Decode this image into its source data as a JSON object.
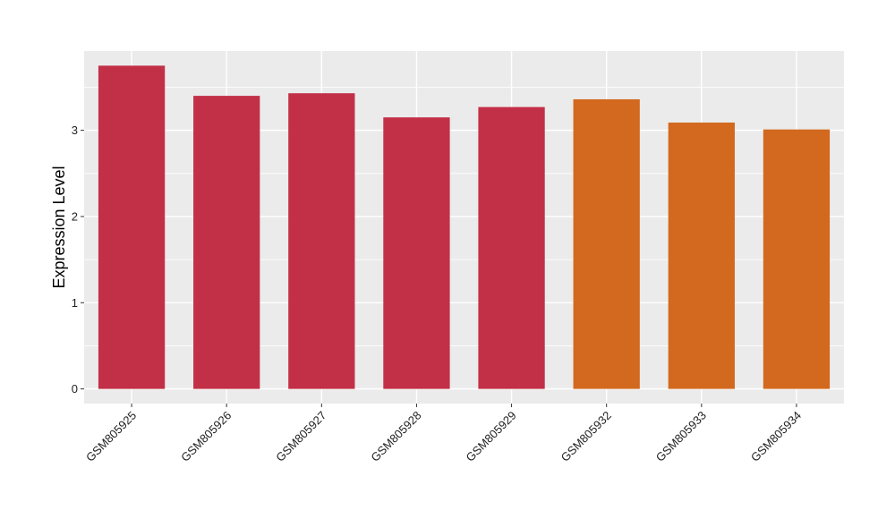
{
  "chart_data": {
    "type": "bar",
    "title": "",
    "xlabel": "",
    "ylabel": "Expression Level",
    "categories": [
      "GSM805925",
      "GSM805926",
      "GSM805927",
      "GSM805928",
      "GSM805929",
      "GSM805932",
      "GSM805933",
      "GSM805934"
    ],
    "values": [
      3.75,
      3.4,
      3.43,
      3.15,
      3.27,
      3.36,
      3.09,
      3.01
    ],
    "bar_colors": [
      "#C23047",
      "#C23047",
      "#C23047",
      "#C23047",
      "#C23047",
      "#D2691E",
      "#D2691E",
      "#D2691E"
    ],
    "ylim": [
      -0.17,
      3.92
    ],
    "yticks": [
      0,
      1,
      2,
      3
    ],
    "grid": true,
    "panel_background": "#EBEBEB",
    "gridline_color": "#FFFFFF",
    "legend": "none"
  }
}
